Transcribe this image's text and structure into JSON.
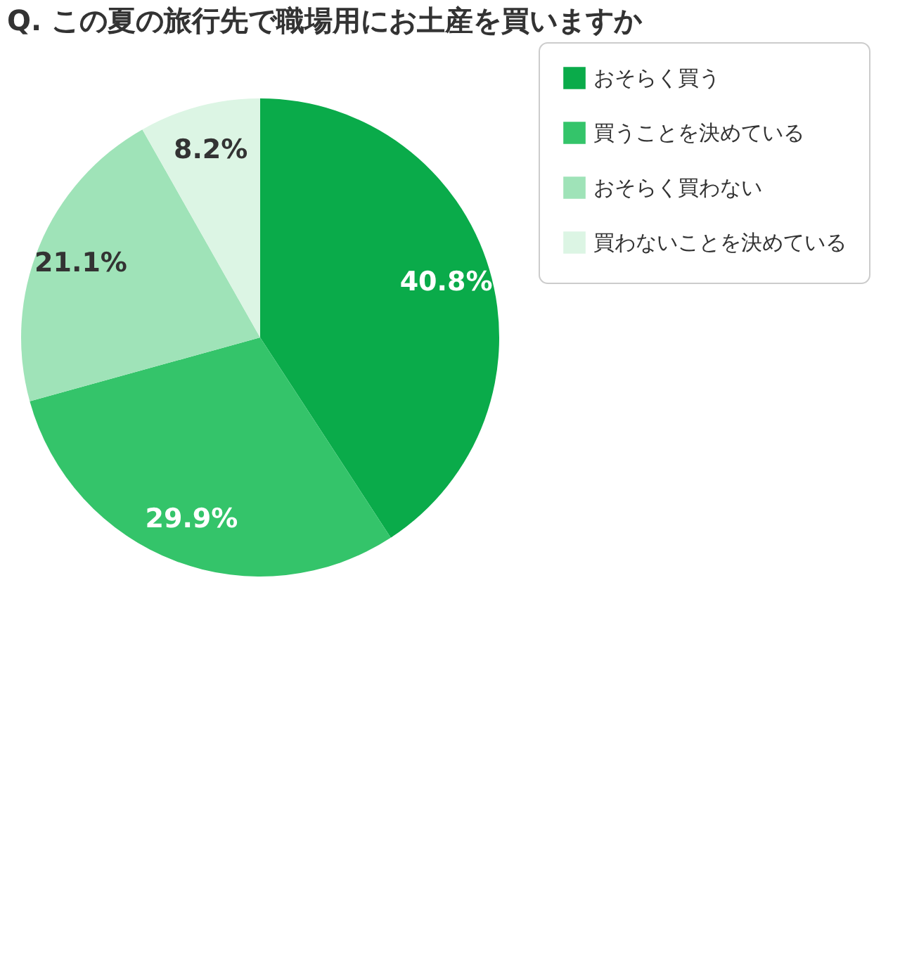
{
  "chart_data": {
    "type": "pie",
    "title": "Q. この夏の旅行先で職場用にお土産を買いますか",
    "categories": [
      "おそらく買う",
      "買うことを決めている",
      "おそらく買わない",
      "買わないことを決めている"
    ],
    "values": [
      40.8,
      29.9,
      21.1,
      8.2
    ],
    "colors": [
      "#0aab4a",
      "#34c46a",
      "#9fe3b8",
      "#dcf5e4"
    ],
    "value_labels": [
      "40.8%",
      "29.9%",
      "21.1%",
      "8.2%"
    ],
    "legend": "right"
  }
}
